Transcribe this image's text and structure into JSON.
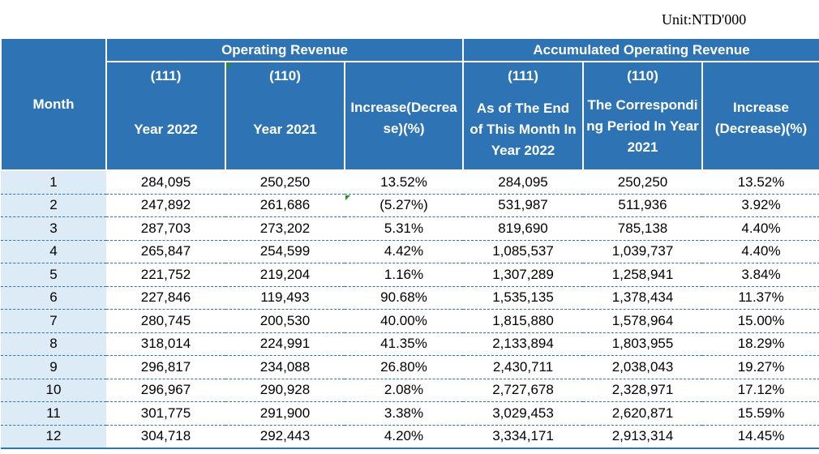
{
  "unit_label": "Unit:NTD'000",
  "header": {
    "month": "Month",
    "group_operating": "Operating Revenue",
    "group_accumulated": "Accumulated Operating Revenue",
    "col1_code": "(111)",
    "col1_label": "Year 2022",
    "col2_code": "(110)",
    "col2_label": "Year 2021",
    "col3_label": "Increase(Decrease)(%)",
    "col4_code": "(111)",
    "col4_label": "As of The End of This Month In Year 2022",
    "col5_code": "(110)",
    "col5_label": "The Corresponding Period In Year 2021",
    "col6_label": "Increase (Decrease)(%)"
  },
  "rows": [
    [
      "1",
      "284,095",
      "250,250",
      "13.52%",
      "284,095",
      "250,250",
      "13.52%"
    ],
    [
      "2",
      "247,892",
      "261,686",
      "(5.27%)",
      "531,987",
      "511,936",
      "3.92%"
    ],
    [
      "3",
      "287,703",
      "273,202",
      "5.31%",
      "819,690",
      "785,138",
      "4.40%"
    ],
    [
      "4",
      "265,847",
      "254,599",
      "4.42%",
      "1,085,537",
      "1,039,737",
      "4.40%"
    ],
    [
      "5",
      "221,752",
      "219,204",
      "1.16%",
      "1,307,289",
      "1,258,941",
      "3.84%"
    ],
    [
      "6",
      "227,846",
      "119,493",
      "90.68%",
      "1,535,135",
      "1,378,434",
      "11.37%"
    ],
    [
      "7",
      "280,745",
      "200,530",
      "40.00%",
      "1,815,880",
      "1,578,964",
      "15.00%"
    ],
    [
      "8",
      "318,014",
      "224,991",
      "41.35%",
      "2,133,894",
      "1,803,955",
      "18.29%"
    ],
    [
      "9",
      "296,817",
      "234,088",
      "26.80%",
      "2,430,711",
      "2,038,043",
      "19.27%"
    ],
    [
      "10",
      "296,967",
      "290,928",
      "2.08%",
      "2,727,678",
      "2,328,971",
      "17.12%"
    ],
    [
      "11",
      "301,775",
      "291,900",
      "3.38%",
      "3,029,453",
      "2,620,871",
      "15.59%"
    ],
    [
      "12",
      "304,718",
      "292,443",
      "4.20%",
      "3,334,171",
      "2,913,314",
      "14.45%"
    ]
  ]
}
